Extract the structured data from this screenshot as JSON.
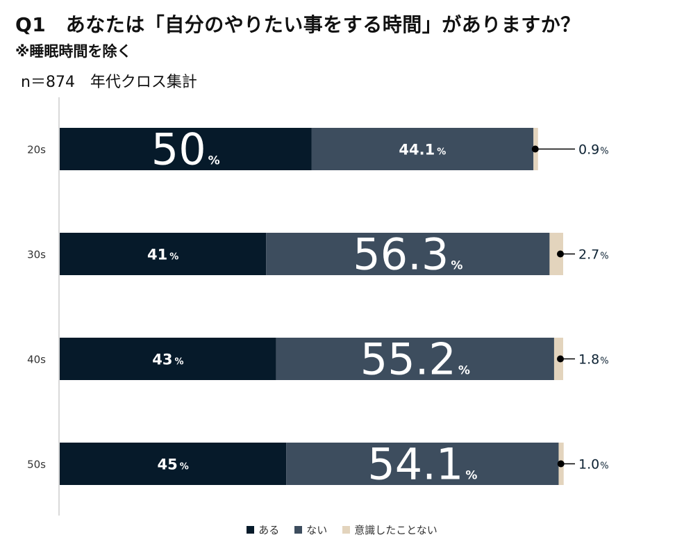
{
  "title": "Q1　あなたは「自分のやりたい事をする時間」がありますか？",
  "subtitle": "※睡眠時間を除く",
  "sample_note": "n＝874　年代クロス集計",
  "colors": {
    "aru": "#061a2a",
    "nai": "#3d4d5e",
    "ishiki": "#e3d4bd",
    "axis": "#d9d9d9",
    "outside_label": "#0d2233"
  },
  "chart_data": {
    "type": "bar",
    "orientation": "horizontal",
    "stacked": true,
    "percent_sign": "%",
    "categories": [
      "20s",
      "30s",
      "40s",
      "50s"
    ],
    "series": [
      {
        "name": "ある",
        "values": [
          50,
          41,
          43,
          45
        ],
        "labels": [
          "50",
          "41",
          "43",
          "45"
        ]
      },
      {
        "name": "ない",
        "values": [
          44.1,
          56.3,
          55.2,
          54.1
        ],
        "labels": [
          "44.1",
          "56.3",
          "55.2",
          "54.1"
        ]
      },
      {
        "name": "意識したことない",
        "values": [
          0.9,
          2.7,
          1.8,
          1.0
        ],
        "labels": [
          "0.9",
          "2.7",
          "1.8",
          "1.0"
        ]
      }
    ],
    "highlight_labels": [
      [
        0,
        0
      ],
      [
        1,
        1
      ],
      [
        1,
        2
      ],
      [
        1,
        3
      ]
    ],
    "xlim": [
      0,
      100
    ],
    "legend_position": "bottom"
  }
}
